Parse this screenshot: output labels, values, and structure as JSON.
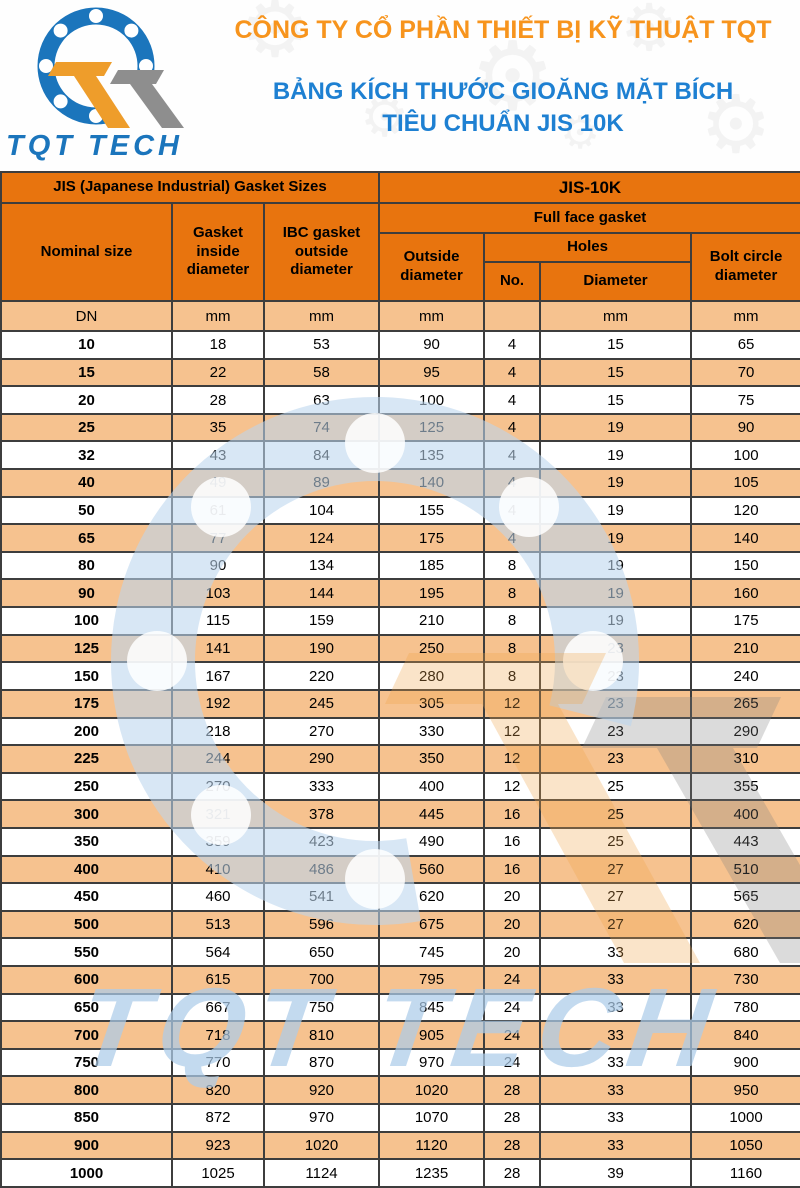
{
  "company_name": "CÔNG TY CỔ PHẦN THIẾT BỊ KỸ THUẬT TQT",
  "subtitle_line1": "BẢNG KÍCH THƯỚC GIOĂNG MẶT BÍCH",
  "subtitle_line2": "TIÊU CHUẨN  JIS 10K",
  "logo": {
    "text": "TQT TECH"
  },
  "watermark": {
    "text": "TQT TECH"
  },
  "colors": {
    "header_orange": "#E8740E",
    "row_peach": "#F6C28F",
    "row_white": "#FFFFFF",
    "title_orange": "#F7941D",
    "title_blue": "#1E80D2",
    "logo_blue": "#1B75BC",
    "logo_orange": "#EE9D2B",
    "logo_gray": "#8E8E8E",
    "grid_border": "#3D3D3D",
    "watermark_blue": "#C9DDEF"
  },
  "table": {
    "header": {
      "left_group": "JIS (Japanese Industrial) Gasket Sizes",
      "right_group": "JIS-10K",
      "nominal_size": "Nominal size",
      "gasket_inside": "Gasket inside diameter",
      "ibc_outside": "IBC gasket outside diameter",
      "full_face": "Full face gasket",
      "outside_diameter": "Outside diameter",
      "holes": "Holes",
      "holes_no": "No.",
      "holes_diameter": "Diameter",
      "bolt_circle": "Bolt circle diameter"
    },
    "units": [
      "DN",
      "mm",
      "mm",
      "mm",
      "",
      "mm",
      "mm"
    ],
    "rows": [
      [
        10,
        18,
        53,
        90,
        4,
        15,
        65
      ],
      [
        15,
        22,
        58,
        95,
        4,
        15,
        70
      ],
      [
        20,
        28,
        63,
        100,
        4,
        15,
        75
      ],
      [
        25,
        35,
        74,
        125,
        4,
        19,
        90
      ],
      [
        32,
        43,
        84,
        135,
        4,
        19,
        100
      ],
      [
        40,
        49,
        89,
        140,
        4,
        19,
        105
      ],
      [
        50,
        61,
        104,
        155,
        4,
        19,
        120
      ],
      [
        65,
        77,
        124,
        175,
        4,
        19,
        140
      ],
      [
        80,
        90,
        134,
        185,
        8,
        19,
        150
      ],
      [
        90,
        103,
        144,
        195,
        8,
        19,
        160
      ],
      [
        100,
        115,
        159,
        210,
        8,
        19,
        175
      ],
      [
        125,
        141,
        190,
        250,
        8,
        23,
        210
      ],
      [
        150,
        167,
        220,
        280,
        8,
        23,
        240
      ],
      [
        175,
        192,
        245,
        305,
        12,
        23,
        265
      ],
      [
        200,
        218,
        270,
        330,
        12,
        23,
        290
      ],
      [
        225,
        244,
        290,
        350,
        12,
        23,
        310
      ],
      [
        250,
        270,
        333,
        400,
        12,
        25,
        355
      ],
      [
        300,
        321,
        378,
        445,
        16,
        25,
        400
      ],
      [
        350,
        359,
        423,
        490,
        16,
        25,
        443
      ],
      [
        400,
        410,
        486,
        560,
        16,
        27,
        510
      ],
      [
        450,
        460,
        541,
        620,
        20,
        27,
        565
      ],
      [
        500,
        513,
        596,
        675,
        20,
        27,
        620
      ],
      [
        550,
        564,
        650,
        745,
        20,
        33,
        680
      ],
      [
        600,
        615,
        700,
        795,
        24,
        33,
        730
      ],
      [
        650,
        667,
        750,
        845,
        24,
        33,
        780
      ],
      [
        700,
        718,
        810,
        905,
        24,
        33,
        840
      ],
      [
        750,
        770,
        870,
        970,
        24,
        33,
        900
      ],
      [
        800,
        820,
        920,
        1020,
        28,
        33,
        950
      ],
      [
        850,
        872,
        970,
        1070,
        28,
        33,
        1000
      ],
      [
        900,
        923,
        1020,
        1120,
        28,
        33,
        1050
      ],
      [
        1000,
        1025,
        1124,
        1235,
        28,
        39,
        1160
      ]
    ]
  }
}
